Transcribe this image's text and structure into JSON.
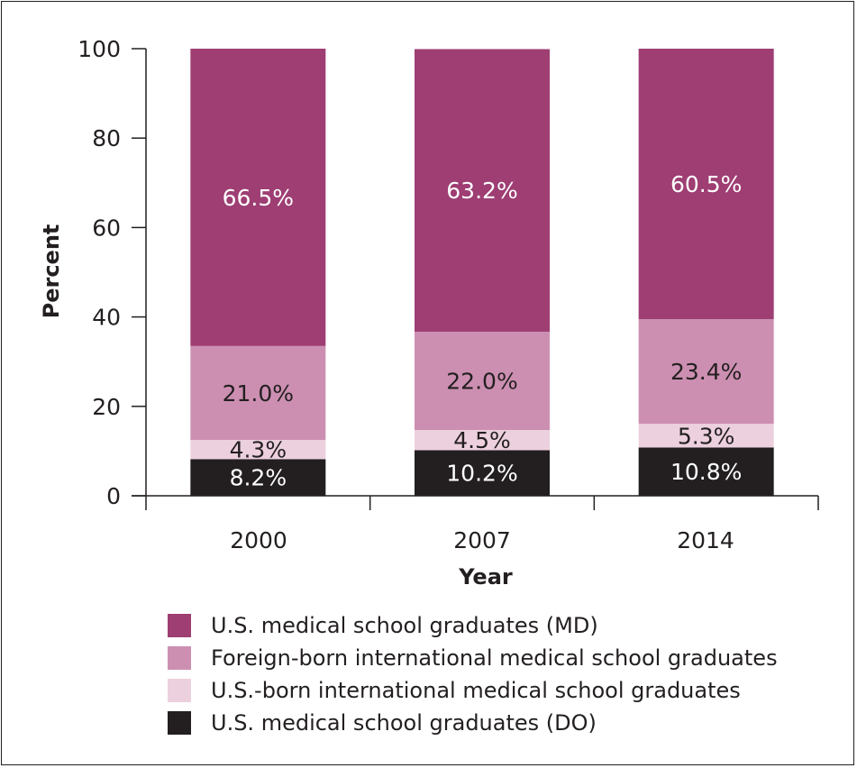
{
  "chart_data": {
    "type": "bar",
    "stacked": true,
    "categories": [
      "2000",
      "2007",
      "2014"
    ],
    "series": [
      {
        "name": "U.S. medical school graduates (DO)",
        "values": [
          8.2,
          10.2,
          10.8
        ],
        "labels": [
          "8.2%",
          "10.2%",
          "10.8%"
        ],
        "color": "#231f20",
        "label_color": "#ffffff"
      },
      {
        "name": "U.S.-born international medical school graduates",
        "values": [
          4.3,
          4.5,
          5.3
        ],
        "labels": [
          "4.3%",
          "4.5%",
          "5.3%"
        ],
        "color": "#ecd0de",
        "label_color": "#231f20"
      },
      {
        "name": "Foreign-born international medical school graduates",
        "values": [
          21.0,
          22.0,
          23.4
        ],
        "labels": [
          "21.0%",
          "22.0%",
          "23.4%"
        ],
        "color": "#cc8fb1",
        "label_color": "#231f20"
      },
      {
        "name": "U.S. medical school graduates (MD)",
        "values": [
          66.5,
          63.2,
          60.5
        ],
        "labels": [
          "66.5%",
          "63.2%",
          "60.5%"
        ],
        "color": "#9e3e73",
        "label_color": "#ffffff"
      }
    ],
    "legend_order": [
      3,
      2,
      1,
      0
    ],
    "xlabel": "Year",
    "ylabel": "Percent",
    "ylim": [
      0,
      100
    ],
    "yticks": [
      0,
      20,
      40,
      60,
      80,
      100
    ],
    "grid": false,
    "legend_position": "bottom"
  }
}
